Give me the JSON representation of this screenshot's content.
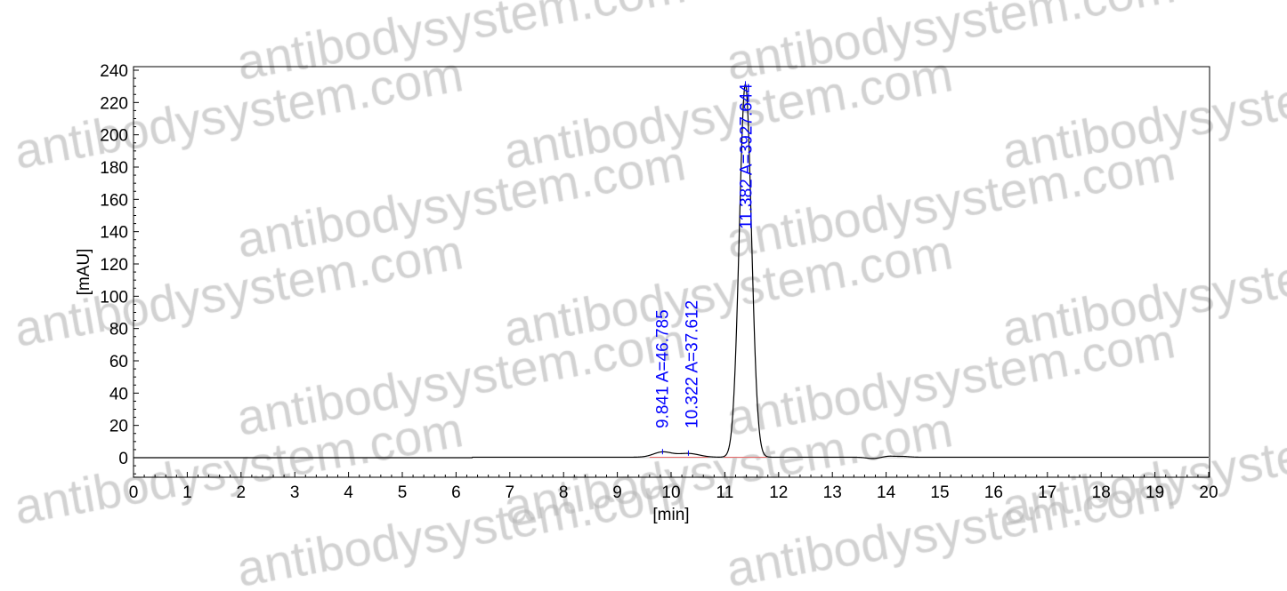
{
  "chart_data": {
    "type": "line",
    "title": "",
    "xlabel": "[min]",
    "ylabel": "[mAU]",
    "xlim": [
      0,
      20
    ],
    "ylim": [
      -12,
      242
    ],
    "x_ticks": [
      0,
      1,
      2,
      3,
      4,
      5,
      6,
      7,
      8,
      9,
      10,
      11,
      12,
      13,
      14,
      15,
      16,
      17,
      18,
      19,
      20
    ],
    "y_ticks": [
      0,
      20,
      40,
      60,
      80,
      100,
      120,
      140,
      160,
      180,
      200,
      220,
      240
    ],
    "grid": false,
    "legend": "none",
    "series_color": "#000000",
    "baseline_color": "#ff0000",
    "annotation_color": "#0000ff",
    "baseline_range": [
      9.6,
      12.1
    ],
    "peaks": [
      {
        "rt": 9.841,
        "area": 46.785,
        "height": 3.2,
        "sigma": 0.17,
        "label": "9.841 A=46.785"
      },
      {
        "rt": 10.322,
        "area": 37.612,
        "height": 2.3,
        "sigma": 0.2,
        "label": "10.322 A=37.612"
      },
      {
        "rt": 11.382,
        "area": 3927.644,
        "height": 231,
        "sigma": 0.113,
        "label": "11.382 A=3927.644"
      }
    ],
    "minor_features": [
      {
        "rt": 13.75,
        "height": -0.8,
        "sigma": 0.12
      },
      {
        "rt": 14.05,
        "height": 0.6,
        "sigma": 0.1
      },
      {
        "rt": 14.3,
        "height": 0.5,
        "sigma": 0.12
      }
    ]
  },
  "watermark": "antibodysystem.com"
}
